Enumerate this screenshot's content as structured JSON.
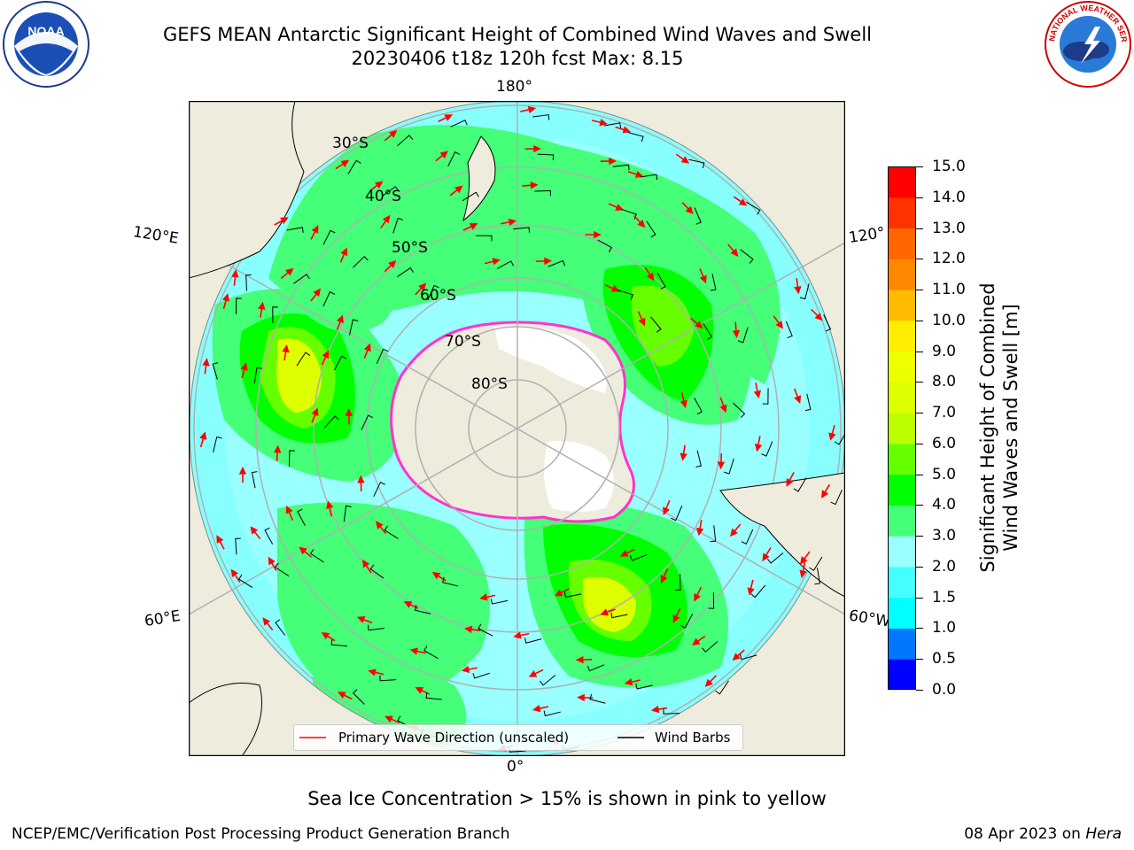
{
  "title": {
    "line1": "GEFS MEAN Antarctic Significant Height of Combined Wind Waves and Swell",
    "line2": "20230406 t18z 120h fcst   Max: 8.15"
  },
  "logos": {
    "left": {
      "name": "noaa-logo",
      "text": "NOAA"
    },
    "right": {
      "name": "nws-logo",
      "text": "NATIONAL WEATHER SERVICE"
    }
  },
  "map": {
    "projection": "south-polar-stereographic",
    "lat_labels": [
      "30°S",
      "40°S",
      "50°S",
      "60°S",
      "70°S",
      "80°S"
    ],
    "lon_labels": {
      "top": "180°",
      "bottom": "0°",
      "left_upper": "120°E",
      "left_lower": "60°E",
      "right_upper": "120°",
      "right_lower": "60°W"
    },
    "colors": {
      "land": "#eeecdd",
      "antarctica_ice": "#ffffff",
      "sea_ice_edge": "#ff33cc",
      "grid": "#b0b0b0"
    }
  },
  "legend": {
    "wave_direction": "Primary Wave Direction (unscaled)",
    "wind_barbs": "Wind Barbs",
    "wave_color": "#ff0000",
    "barb_color": "#000000"
  },
  "colorbar": {
    "title_line1": "Significant Height of Combined",
    "title_line2": "Wind Waves and Swell [m]",
    "ticks": [
      "0.0",
      "0.5",
      "1.0",
      "1.5",
      "2.0",
      "3.0",
      "4.0",
      "5.0",
      "6.0",
      "7.0",
      "8.0",
      "9.0",
      "10.0",
      "11.0",
      "12.0",
      "13.0",
      "14.0",
      "15.0"
    ],
    "colors": [
      "#0000ff",
      "#0077ff",
      "#00ffff",
      "#44ffff",
      "#99ffff",
      "#44ff77",
      "#00ff00",
      "#66ff00",
      "#bbff00",
      "#ddff00",
      "#eeff00",
      "#ffee00",
      "#ffbb00",
      "#ff8800",
      "#ff6600",
      "#ff3300",
      "#ff0000"
    ]
  },
  "note": "Sea Ice Concentration > 15% is shown in pink to yellow",
  "footer": {
    "left": "NCEP/EMC/Verification Post Processing Product Generation Branch",
    "right_prefix": "08 Apr 2023 on ",
    "right_host": "Hera"
  }
}
